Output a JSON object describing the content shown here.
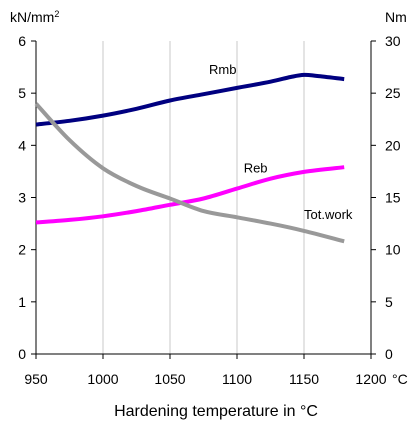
{
  "chart_data": {
    "type": "line",
    "xlabel": "Hardening temperature in °C",
    "x_unit": "°C",
    "left_axis_unit": "kN/mm",
    "left_axis_unit_superscript": "2",
    "right_axis_unit": "Nm",
    "xlim": [
      950,
      1200
    ],
    "x_ticks": [
      950,
      1000,
      1050,
      1100,
      1150,
      1200
    ],
    "ylim_left": [
      0,
      6
    ],
    "y_ticks_left": [
      0,
      1,
      2,
      3,
      4,
      5,
      6
    ],
    "ylim_right": [
      0,
      30
    ],
    "y_ticks_right": [
      0,
      5,
      10,
      15,
      20,
      25,
      30
    ],
    "grid": "vertical",
    "series": [
      {
        "name": "Rmb",
        "axis": "left",
        "color": "#000080",
        "x": [
          950,
          975,
          1000,
          1025,
          1050,
          1075,
          1100,
          1125,
          1140,
          1150,
          1160,
          1180
        ],
        "y": [
          4.4,
          4.47,
          4.57,
          4.7,
          4.86,
          4.98,
          5.1,
          5.22,
          5.31,
          5.35,
          5.33,
          5.27
        ]
      },
      {
        "name": "Reb",
        "axis": "left",
        "color": "#ff00ff",
        "x": [
          950,
          975,
          1000,
          1025,
          1050,
          1075,
          1100,
          1125,
          1150,
          1180
        ],
        "y": [
          2.52,
          2.57,
          2.64,
          2.74,
          2.86,
          2.98,
          3.17,
          3.36,
          3.49,
          3.58
        ]
      },
      {
        "name": "Tot.work",
        "axis": "right",
        "color": "#999999",
        "x": [
          950,
          975,
          1000,
          1025,
          1050,
          1075,
          1100,
          1125,
          1150,
          1180
        ],
        "y": [
          24,
          20.5,
          17.8,
          16.1,
          14.9,
          13.7,
          13.1,
          12.5,
          11.8,
          10.8
        ]
      }
    ]
  }
}
